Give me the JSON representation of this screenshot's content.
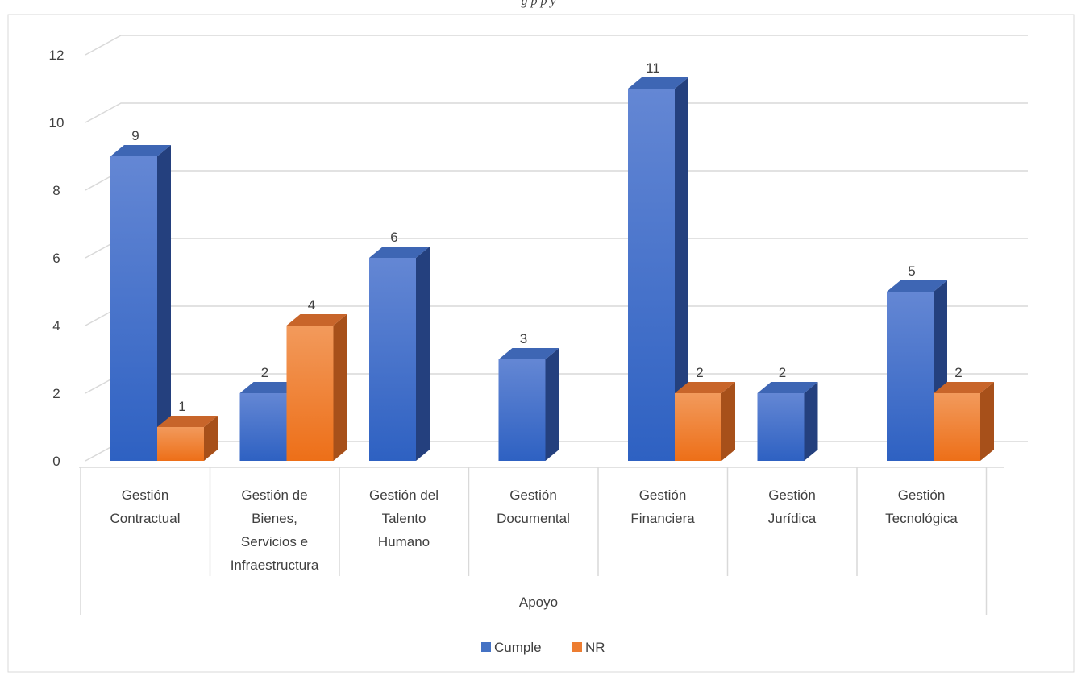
{
  "figure": {
    "cut_caption_fragment": "g                              p        p y"
  },
  "chart_data": {
    "type": "bar",
    "title": "",
    "xlabel": "Apoyo",
    "ylabel": "",
    "ylim": [
      0,
      12
    ],
    "y_ticks": [
      0,
      2,
      4,
      6,
      8,
      10,
      12
    ],
    "grid": true,
    "legend_position": "bottom",
    "categories": [
      [
        "Gestión",
        "Contractual"
      ],
      [
        "Gestión de",
        "Bienes,",
        "Servicios e",
        "Infraestructura"
      ],
      [
        "Gestión del",
        "Talento",
        "Humano"
      ],
      [
        "Gestión",
        "Documental"
      ],
      [
        "Gestión",
        "Financiera"
      ],
      [
        "Gestión",
        "Jurídica"
      ],
      [
        "Gestión",
        "Tecnológica"
      ]
    ],
    "series": [
      {
        "name": "Cumple",
        "color": "#4472C4",
        "values": [
          9,
          2,
          6,
          3,
          11,
          2,
          5
        ]
      },
      {
        "name": "NR",
        "color": "#ED7D31",
        "values": [
          1,
          4,
          null,
          null,
          2,
          null,
          2
        ]
      }
    ]
  }
}
